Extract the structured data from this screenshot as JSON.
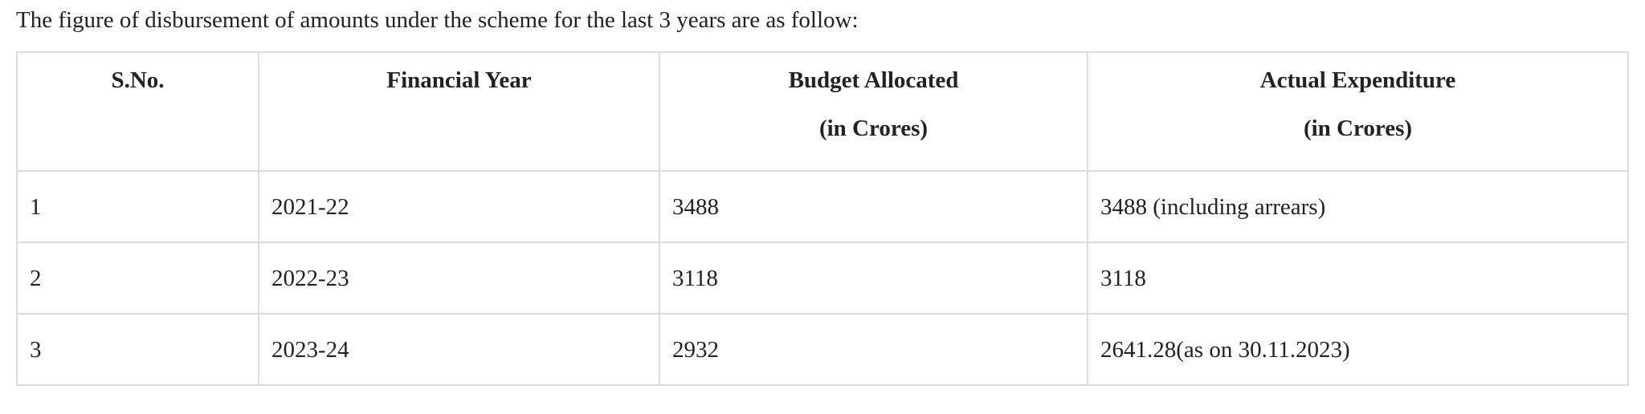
{
  "intro_text": "The figure of disbursement of amounts under the scheme for the last 3 years are as follow:",
  "table": {
    "headers": [
      {
        "line1": "S.No.",
        "line2": ""
      },
      {
        "line1": "Financial Year",
        "line2": ""
      },
      {
        "line1": "Budget Allocated",
        "line2": "(in Crores)"
      },
      {
        "line1": "Actual Expenditure",
        "line2": "(in Crores)"
      }
    ],
    "rows": [
      [
        "1",
        "2021-22",
        "3488",
        "3488 (including arrears)"
      ],
      [
        "2",
        "2022-23",
        "3118",
        "3118"
      ],
      [
        "3",
        "2023-24",
        "2932",
        "2641.28(as on 30.11.2023)"
      ]
    ]
  }
}
